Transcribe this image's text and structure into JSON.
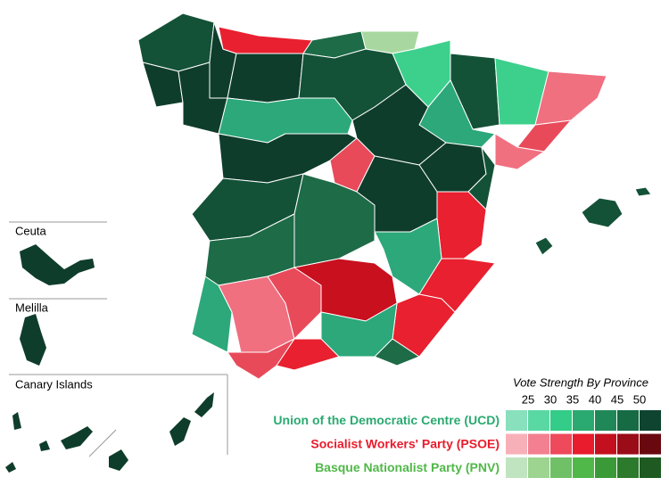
{
  "insets": [
    {
      "label": "Ceuta"
    },
    {
      "label": "Melilla"
    },
    {
      "label": "Canary Islands"
    }
  ],
  "legend": {
    "title": "Vote Strength By Province",
    "ticks": [
      25,
      30,
      35,
      40,
      45,
      50
    ],
    "parties": [
      {
        "name": "Union of the Democratic Centre (UCD)",
        "color": "#2aaa70",
        "colors": [
          "#88e0bc",
          "#5ad8a4",
          "#33cc88",
          "#2aaa70",
          "#208858",
          "#166a44",
          "#0e4430"
        ]
      },
      {
        "name": "Socialist Workers' Party (PSOE)",
        "color": "#e81c2c",
        "colors": [
          "#f8b0b8",
          "#f38090",
          "#ee4a5c",
          "#e81c2c",
          "#c4101e",
          "#9a0c18",
          "#6a0810"
        ]
      },
      {
        "name": "Basque Nationalist Party (PNV)",
        "color": "#50b848",
        "colors": [
          "#c0e4c0",
          "#9cd490",
          "#70c068",
          "#50b848",
          "#3a9a38",
          "#2c7a2c",
          "#1e5a22"
        ]
      }
    ]
  }
}
